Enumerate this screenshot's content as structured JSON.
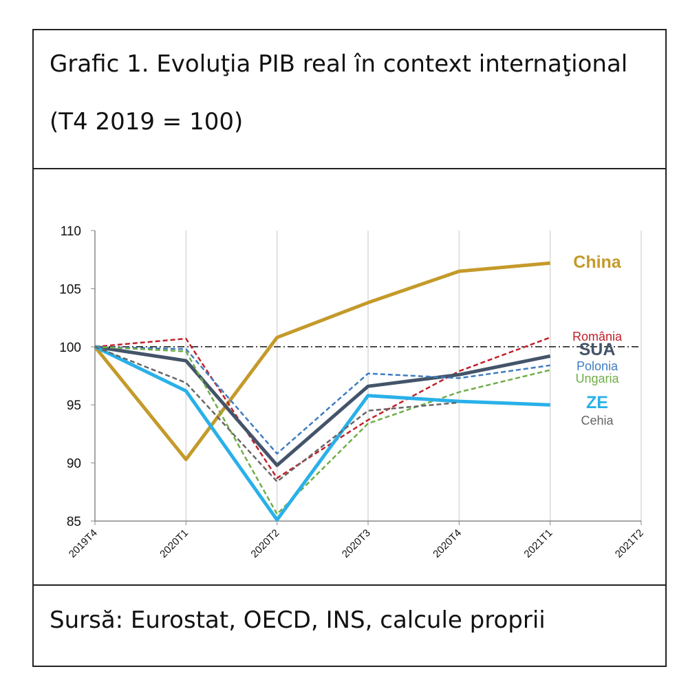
{
  "chart_data": {
    "type": "line",
    "title": "Grafic 1. Evoluţia PIB real în context internaţional",
    "subtitle": "(T4 2019 = 100)",
    "source": "Sursă: Eurostat, OECD, INS, calcule proprii",
    "categories": [
      "2019T4",
      "2020T1",
      "2020T2",
      "2020T3",
      "2020T4",
      "2021T1",
      "2021T2"
    ],
    "ylim": [
      85,
      110
    ],
    "yticks": [
      85,
      90,
      95,
      100,
      105,
      110
    ],
    "grid": "vertical",
    "reference": 100,
    "series": [
      {
        "name": "China",
        "color": "#c49a2a",
        "dashed": false,
        "values": [
          100,
          90.3,
          100.8,
          103.8,
          106.5,
          107.2,
          null
        ]
      },
      {
        "name": "România",
        "color": "#c0202a",
        "dashed": true,
        "values": [
          100,
          100.7,
          88.7,
          93.7,
          97.9,
          100.8,
          null
        ]
      },
      {
        "name": "SUA",
        "color": "#44546a",
        "dashed": false,
        "values": [
          100,
          98.8,
          89.8,
          96.6,
          97.6,
          99.2,
          null
        ]
      },
      {
        "name": "Polonia",
        "color": "#3e7cc0",
        "dashed": true,
        "values": [
          100,
          99.8,
          90.8,
          97.7,
          97.3,
          98.4,
          null
        ]
      },
      {
        "name": "Ungaria",
        "color": "#70ad47",
        "dashed": true,
        "values": [
          100,
          99.6,
          85.6,
          93.4,
          96.1,
          98.0,
          null
        ]
      },
      {
        "name": "ZE",
        "color": "#29b0e8",
        "dashed": false,
        "values": [
          100,
          96.2,
          85.1,
          95.8,
          95.3,
          95.0,
          null
        ]
      },
      {
        "name": "Cehia",
        "color": "#666666",
        "dashed": true,
        "values": [
          100,
          96.9,
          88.4,
          94.5,
          95.2,
          null,
          null
        ]
      }
    ]
  }
}
